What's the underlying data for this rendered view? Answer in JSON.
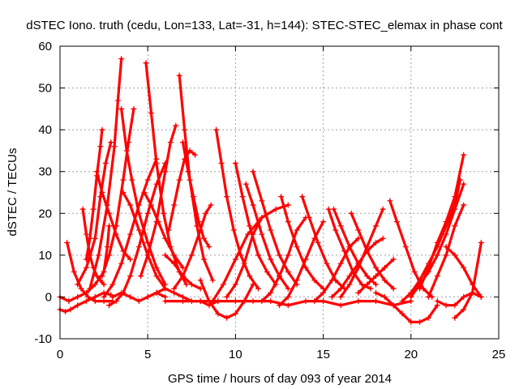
{
  "chart_data": {
    "type": "scatter",
    "title": "dSTEC Iono. truth (cedu, Lon=133, Lat=-31, h=144): STEC-STEC_elemax in phase cont",
    "xlabel": "GPS time / hours of day 093 of year 2014",
    "ylabel": "dSTEC  / TECUs",
    "xlim": [
      0,
      25
    ],
    "ylim": [
      -10,
      60
    ],
    "xticks": [
      0,
      5,
      10,
      15,
      20,
      25
    ],
    "yticks": [
      -10,
      0,
      10,
      20,
      30,
      40,
      50,
      60
    ],
    "grid": true,
    "legend": "none",
    "marker": "plus",
    "color": "#ff0000",
    "series": [
      {
        "x": [
          0.0,
          0.3,
          0.6,
          1.0,
          1.5,
          2.0,
          2.5,
          2.9
        ],
        "y": [
          -3,
          -3.5,
          -3,
          -2,
          -1,
          0,
          1,
          0.5
        ]
      },
      {
        "x": [
          0.4,
          0.8,
          1.2,
          1.6,
          2.0,
          2.5,
          3.0
        ],
        "y": [
          13,
          6,
          2,
          0,
          -1,
          -1,
          -1
        ]
      },
      {
        "x": [
          0.0,
          0.5,
          1.0,
          1.5,
          2.0,
          2.5,
          2.7,
          2.8
        ],
        "y": [
          0,
          -1,
          0,
          1,
          3,
          6,
          12,
          17
        ]
      },
      {
        "x": [
          1.3,
          1.5,
          1.7,
          1.9,
          2.1,
          2.3,
          2.5
        ],
        "y": [
          21,
          15,
          10,
          7,
          5,
          4,
          3
        ]
      },
      {
        "x": [
          1.5,
          1.7,
          1.9,
          2.1,
          2.3,
          2.4
        ],
        "y": [
          9,
          14,
          21,
          29,
          36,
          40
        ]
      },
      {
        "x": [
          1.0,
          1.5,
          2.0,
          2.3,
          2.6,
          2.9
        ],
        "y": [
          3,
          7,
          14,
          24,
          32,
          37
        ]
      },
      {
        "x": [
          1.7,
          2.2,
          2.7,
          3.1,
          3.3,
          3.5
        ],
        "y": [
          2,
          10,
          22,
          36,
          47,
          57
        ]
      },
      {
        "x": [
          2.1,
          2.4,
          2.8,
          3.2,
          3.6,
          4.0
        ],
        "y": [
          30,
          25,
          20,
          15,
          11,
          9
        ]
      },
      {
        "x": [
          2.4,
          2.8,
          3.2,
          3.6,
          3.9,
          4.2
        ],
        "y": [
          5,
          10,
          17,
          28,
          37,
          45
        ]
      },
      {
        "x": [
          2.5,
          3.0,
          3.5,
          4.0,
          4.5,
          5.0,
          5.5
        ],
        "y": [
          0,
          3,
          8,
          15,
          22,
          28,
          33
        ]
      },
      {
        "x": [
          3.5,
          3.8,
          4.1,
          4.5,
          5.0,
          5.5,
          6.0
        ],
        "y": [
          45,
          35,
          28,
          20,
          13,
          7,
          3
        ]
      },
      {
        "x": [
          3.6,
          4.0,
          4.5,
          5.0,
          5.5,
          6.0
        ],
        "y": [
          25,
          22,
          16,
          10,
          5,
          2
        ]
      },
      {
        "x": [
          2.8,
          3.2,
          3.6,
          4.0,
          4.5,
          5.0,
          5.5,
          6.0
        ],
        "y": [
          -2,
          -1,
          1,
          5,
          12,
          20,
          27,
          32
        ]
      },
      {
        "x": [
          4.9,
          5.2,
          5.5,
          5.9,
          6.3,
          6.8,
          7.2
        ],
        "y": [
          56,
          44,
          32,
          20,
          12,
          6,
          3
        ]
      },
      {
        "x": [
          4.6,
          5.0,
          5.5,
          6.0,
          6.3,
          6.6
        ],
        "y": [
          5,
          10,
          18,
          30,
          37,
          41
        ]
      },
      {
        "x": [
          4.8,
          5.2,
          5.6,
          6.0,
          6.5,
          7.0
        ],
        "y": [
          25,
          22,
          18,
          14,
          10,
          7
        ]
      },
      {
        "x": [
          6.8,
          7.1,
          7.4,
          7.8,
          8.2,
          8.7
        ],
        "y": [
          53,
          40,
          28,
          17,
          9,
          4
        ]
      },
      {
        "x": [
          7.0,
          7.3,
          7.6,
          7.9,
          8.2,
          8.5
        ],
        "y": [
          37,
          30,
          24,
          18,
          14,
          12
        ]
      },
      {
        "x": [
          6.2,
          6.5,
          6.8,
          7.1,
          7.4,
          7.7
        ],
        "y": [
          16,
          22,
          28,
          33,
          35,
          34
        ]
      },
      {
        "x": [
          6.5,
          7.0,
          7.5,
          8.0,
          8.3,
          8.6
        ],
        "y": [
          2,
          5,
          10,
          16,
          20,
          22
        ]
      },
      {
        "x": [
          6.0,
          6.5,
          7.0,
          7.5,
          8.0
        ],
        "y": [
          10,
          8,
          5,
          3,
          2
        ]
      },
      {
        "x": [
          8.9,
          9.2,
          9.5,
          9.9,
          10.3,
          10.8,
          11.3
        ],
        "y": [
          40,
          32,
          24,
          16,
          10,
          5,
          2
        ]
      },
      {
        "x": [
          10.0,
          10.4,
          10.8,
          11.3,
          11.8,
          12.3
        ],
        "y": [
          32,
          24,
          17,
          10,
          6,
          3
        ]
      },
      {
        "x": [
          10.6,
          11.0,
          11.5,
          12.0,
          12.5,
          13.0
        ],
        "y": [
          27,
          22,
          15,
          9,
          5,
          2
        ]
      },
      {
        "x": [
          11.0,
          11.5,
          12.0,
          12.5,
          13.0,
          13.5
        ],
        "y": [
          30,
          23,
          16,
          10,
          6,
          3
        ]
      },
      {
        "x": [
          12.6,
          13.0,
          13.5,
          14.0,
          14.5,
          15.0
        ],
        "y": [
          24,
          18,
          12,
          7,
          4,
          2
        ]
      },
      {
        "x": [
          13.8,
          14.2,
          14.7,
          15.2,
          15.7,
          16.2
        ],
        "y": [
          24,
          19,
          13,
          8,
          4,
          2
        ]
      },
      {
        "x": [
          15.3,
          15.7,
          16.2,
          16.7,
          17.2,
          17.7
        ],
        "y": [
          21,
          16,
          11,
          6,
          3,
          2
        ]
      },
      {
        "x": [
          15.6,
          16.0,
          16.5,
          17.0,
          17.5,
          18.0
        ],
        "y": [
          21,
          17,
          12,
          8,
          5,
          3
        ]
      },
      {
        "x": [
          16.6,
          17.0,
          17.5,
          18.0,
          18.5,
          19.0
        ],
        "y": [
          20,
          16,
          11,
          7,
          4,
          2
        ]
      },
      {
        "x": [
          18.8,
          19.2,
          19.7,
          20.2,
          20.7,
          21.2
        ],
        "y": [
          23,
          18,
          12,
          6,
          2,
          0
        ]
      },
      {
        "x": [
          8.0,
          8.5,
          9.0,
          9.5,
          10.0,
          10.5,
          11.0
        ],
        "y": [
          4,
          -1,
          -4,
          -5,
          -4,
          -1,
          3
        ]
      },
      {
        "x": [
          8.7,
          9.3,
          10.0,
          10.7,
          11.5,
          12.3,
          13.0
        ],
        "y": [
          -1,
          3,
          9,
          15,
          19,
          21,
          22
        ]
      },
      {
        "x": [
          9.5,
          10.0,
          10.5,
          11.0,
          11.5
        ],
        "y": [
          0,
          3,
          8,
          15,
          19
        ]
      },
      {
        "x": [
          11.5,
          12.0,
          12.5,
          13.0,
          13.5,
          14.0
        ],
        "y": [
          -1,
          1,
          5,
          10,
          16,
          19
        ]
      },
      {
        "x": [
          12.5,
          13.0,
          13.5,
          14.0,
          14.5,
          15.0
        ],
        "y": [
          -2,
          0,
          4,
          9,
          14,
          18
        ]
      },
      {
        "x": [
          14.5,
          15.0,
          15.5,
          16.0,
          16.5,
          17.0
        ],
        "y": [
          -1,
          1,
          4,
          8,
          12,
          14
        ]
      },
      {
        "x": [
          16.0,
          16.5,
          17.0,
          17.5,
          18.0,
          18.4
        ],
        "y": [
          0,
          3,
          7,
          12,
          17,
          21
        ]
      },
      {
        "x": [
          15.5,
          16.0,
          16.5,
          17.0,
          17.5,
          18.0,
          18.4
        ],
        "y": [
          0,
          2,
          5,
          8,
          11,
          13,
          14
        ]
      },
      {
        "x": [
          17.0,
          17.5,
          18.0,
          18.5,
          19.0
        ],
        "y": [
          1,
          3,
          5,
          7,
          9
        ]
      },
      {
        "x": [
          18.0,
          18.5,
          19.0,
          19.5,
          20.0,
          20.5,
          21.0,
          21.5
        ],
        "y": [
          1,
          0,
          -2,
          -4,
          -6,
          -6,
          -5,
          -2
        ]
      },
      {
        "x": [
          19.5,
          20.0,
          20.5,
          21.0,
          21.5,
          22.0,
          22.5,
          22.8
        ],
        "y": [
          -1,
          1,
          4,
          8,
          12,
          17,
          22,
          28
        ]
      },
      {
        "x": [
          20.0,
          20.5,
          21.0,
          21.5,
          22.0,
          22.5,
          23.0
        ],
        "y": [
          0,
          3,
          6,
          10,
          15,
          21,
          27
        ]
      },
      {
        "x": [
          21.0,
          21.5,
          22.0,
          22.5,
          23.0
        ],
        "y": [
          0,
          5,
          10,
          17,
          22
        ]
      },
      {
        "x": [
          20.5,
          21.0,
          21.5,
          22.0,
          22.5,
          23.0
        ],
        "y": [
          2,
          7,
          13,
          18,
          24,
          34
        ]
      },
      {
        "x": [
          22.0,
          22.5,
          23.0,
          23.5,
          24.0
        ],
        "y": [
          12,
          10,
          7,
          3,
          0
        ]
      },
      {
        "x": [
          22.5,
          23.0,
          23.5,
          24.0
        ],
        "y": [
          -5,
          -3,
          1,
          13
        ]
      },
      {
        "x": [
          21.5,
          22.0,
          22.5,
          23.0,
          23.5,
          24.0
        ],
        "y": [
          -1,
          -2,
          -2,
          0,
          1,
          0
        ]
      },
      {
        "x": [
          3.0,
          3.5,
          4.0,
          4.5,
          5.0,
          5.5,
          6.0
        ],
        "y": [
          0,
          1,
          0,
          -1,
          0,
          1,
          0
        ]
      },
      {
        "x": [
          6.0,
          7.0,
          8.0,
          9.0,
          10.0,
          11.0,
          12.0,
          13.0,
          14.0,
          15.0,
          16.0,
          17.0,
          18.0,
          19.0,
          20.0
        ],
        "y": [
          -1,
          -1,
          -1,
          -1,
          -1,
          -1,
          -1,
          -2,
          -1,
          -1,
          -2,
          -1,
          -1,
          -2,
          -1
        ]
      },
      {
        "x": [
          5.0,
          5.5,
          6.0,
          6.5,
          7.0,
          7.5,
          8.0,
          8.5,
          9.0
        ],
        "y": [
          0,
          1,
          2,
          1,
          0,
          -1,
          -1,
          -2,
          -1
        ]
      }
    ]
  }
}
